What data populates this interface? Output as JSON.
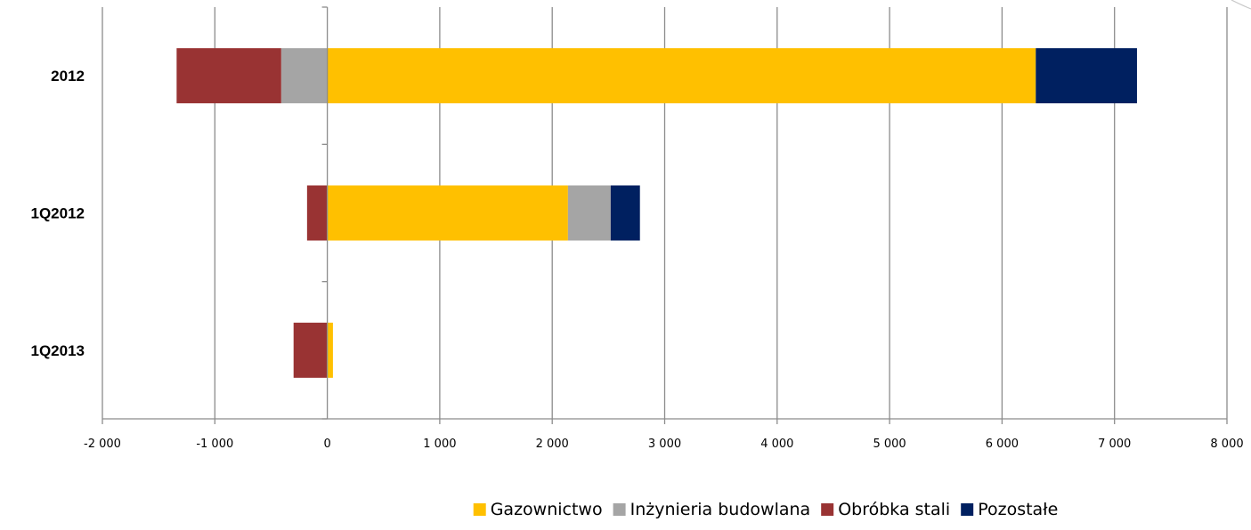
{
  "chart_data": {
    "type": "bar",
    "orientation": "horizontal",
    "stacked": true,
    "categories": [
      "2012",
      "1Q2012",
      "1Q2013"
    ],
    "series": [
      {
        "name": "Gazownictwo",
        "color": "#FFC000",
        "values": [
          6300,
          2140,
          50
        ]
      },
      {
        "name": "Inżynieria budowlana",
        "color": "#A5A5A5",
        "values": [
          -410,
          380,
          0
        ]
      },
      {
        "name": "Obróbka stali",
        "color": "#993333",
        "values": [
          -930,
          -180,
          -300
        ]
      },
      {
        "name": "Pozostałe",
        "color": "#002060",
        "values": [
          900,
          260,
          0
        ]
      }
    ],
    "xlim": [
      -2000,
      8000
    ],
    "xticks": [
      -2000,
      -1000,
      0,
      1000,
      2000,
      3000,
      4000,
      5000,
      6000,
      7000,
      8000
    ],
    "xtick_labels": [
      "-2 000",
      "-1 000",
      "0",
      "1 000",
      "2 000",
      "3 000",
      "4 000",
      "5 000",
      "6 000",
      "7 000",
      "8 000"
    ],
    "grid": "vertical",
    "legend_position": "bottom"
  }
}
